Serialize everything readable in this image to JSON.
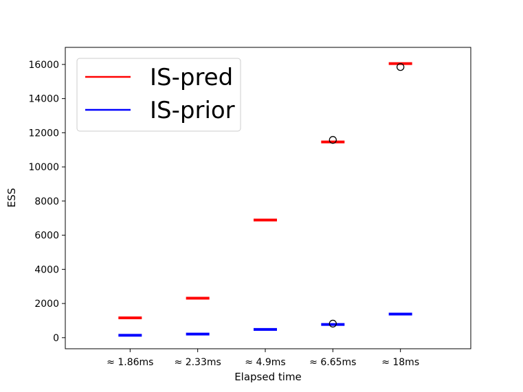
{
  "chart_data": {
    "type": "box",
    "xlabel": "Elapsed time",
    "ylabel": "ESS",
    "categories": [
      "≈ 1.86ms",
      "≈ 2.33ms",
      "≈ 4.9ms",
      "≈ 6.65ms",
      "≈ 18ms"
    ],
    "ylim": [
      -650,
      17000
    ],
    "yticks": [
      0,
      2000,
      4000,
      6000,
      8000,
      10000,
      12000,
      14000,
      16000
    ],
    "legend_position": "top-left",
    "grid": false,
    "series": [
      {
        "name": "IS-pred",
        "color": "#ff0000",
        "medians": [
          1160,
          2310,
          6890,
          11460,
          16050
        ],
        "outliers": [
          [],
          [],
          [],
          [
            11580
          ],
          [
            15850
          ]
        ]
      },
      {
        "name": "IS-prior",
        "color": "#0000ff",
        "medians": [
          140,
          210,
          480,
          770,
          1380
        ],
        "outliers": [
          [],
          [],
          [],
          [
            820
          ],
          []
        ]
      }
    ]
  }
}
